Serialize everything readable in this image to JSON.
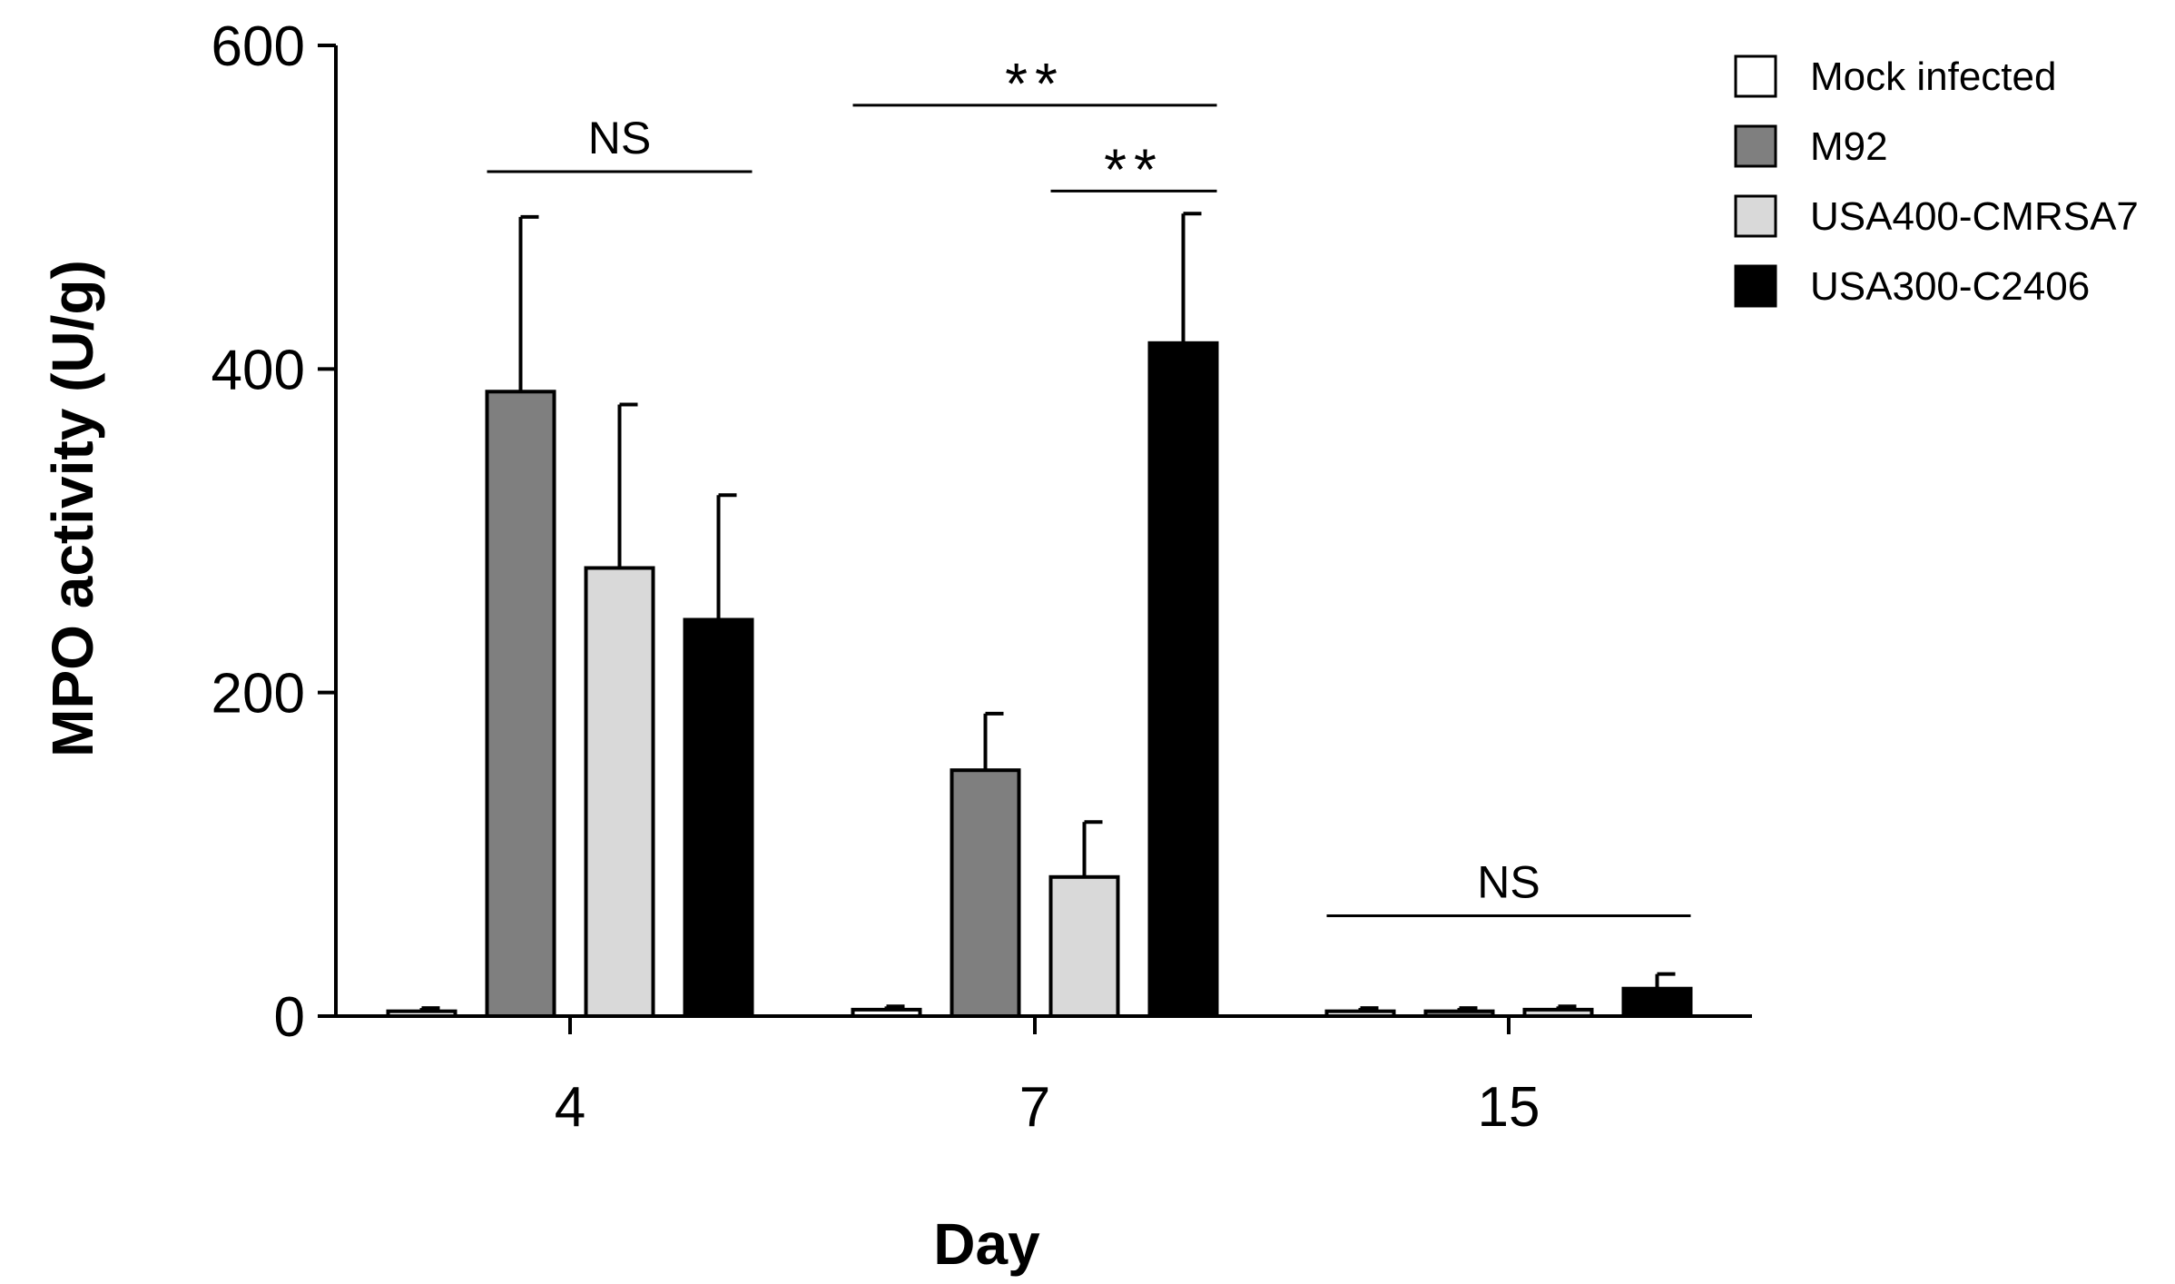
{
  "chart_data": {
    "type": "bar",
    "title": "",
    "xlabel": "Day",
    "ylabel": "MPO activity (U/g)",
    "ylim": [
      0,
      600
    ],
    "yticks": [
      0,
      200,
      400,
      600
    ],
    "categories": [
      "4",
      "7",
      "15"
    ],
    "series": [
      {
        "name": "Mock infected",
        "color": "#ffffff",
        "values": [
          3,
          4,
          3
        ],
        "errors": [
          2,
          2,
          2
        ]
      },
      {
        "name": "M92",
        "color": "#7f7f7f",
        "values": [
          386,
          152,
          3
        ],
        "errors": [
          108,
          35,
          2
        ]
      },
      {
        "name": "USA400-CMRSA7",
        "color": "#d9d9d9",
        "values": [
          277,
          86,
          4
        ],
        "errors": [
          101,
          34,
          2
        ]
      },
      {
        "name": "USA300-C2406",
        "color": "#000000",
        "values": [
          245,
          416,
          17
        ],
        "errors": [
          77,
          80,
          9
        ]
      }
    ],
    "legend_position": "top-right",
    "grid": false,
    "annotations": [
      {
        "text": "NS",
        "category": "4",
        "from_series": 1,
        "to_series": 3,
        "level": 522
      },
      {
        "text": "**",
        "category": "7",
        "from_series": 0,
        "to_series": 3,
        "level": 563
      },
      {
        "text": "**",
        "category": "7",
        "from_series": 2,
        "to_series": 3,
        "level": 510
      },
      {
        "text": "NS",
        "category": "15",
        "from_series": 0,
        "to_series": 3,
        "level": 62
      }
    ]
  }
}
